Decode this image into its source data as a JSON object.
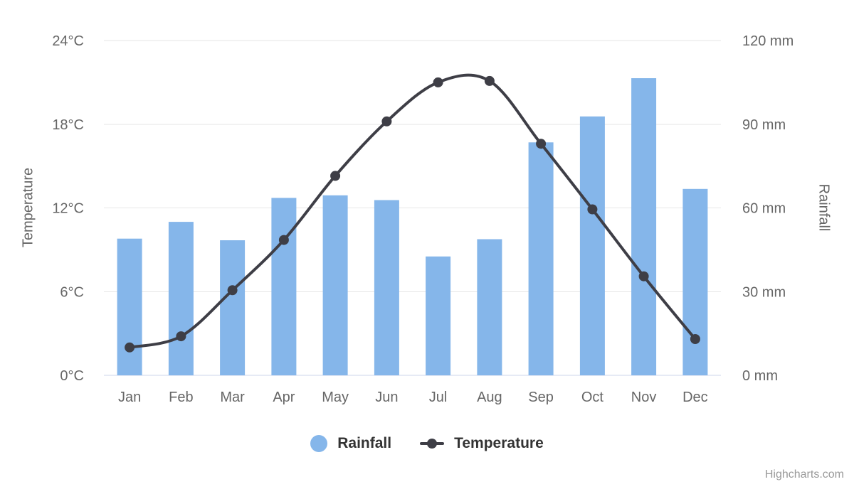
{
  "chart_data": {
    "type": "combo",
    "title": "",
    "categories": [
      "Jan",
      "Feb",
      "Mar",
      "Apr",
      "May",
      "Jun",
      "Jul",
      "Aug",
      "Sep",
      "Oct",
      "Nov",
      "Dec"
    ],
    "series": [
      {
        "name": "Rainfall",
        "type": "bar",
        "axis": "right",
        "unit": "mm",
        "color": "#85b6ea",
        "values": [
          49.0,
          55.0,
          48.4,
          63.6,
          64.5,
          62.8,
          42.6,
          48.8,
          83.5,
          92.8,
          106.5,
          66.8
        ]
      },
      {
        "name": "Temperature",
        "type": "spline",
        "axis": "left",
        "unit": "°C",
        "color": "#3e3e46",
        "values": [
          2.0,
          2.8,
          6.1,
          9.7,
          14.3,
          18.2,
          21.0,
          21.1,
          16.6,
          11.9,
          7.1,
          2.6
        ]
      }
    ],
    "axes": {
      "left": {
        "title": "Temperature",
        "ticks": [
          0,
          6,
          12,
          18,
          24
        ],
        "tick_suffix": "°C",
        "range": [
          0,
          24
        ]
      },
      "right": {
        "title": "Rainfall",
        "ticks": [
          0,
          30,
          60,
          90,
          120
        ],
        "tick_suffix": " mm",
        "range": [
          0,
          120
        ]
      }
    },
    "legend": [
      {
        "label": "Rainfall",
        "marker": "circle"
      },
      {
        "label": "Temperature",
        "marker": "line-dot"
      }
    ],
    "legend_position": "bottom-center",
    "grid": "horizontal",
    "credits": "Highcharts.com",
    "colors": {
      "grid_line": "#e6e6e6",
      "axis_line": "#ccd6eb",
      "tick_label": "#666666",
      "axis_title": "#666666",
      "legend_text": "#333333",
      "credits_text": "#999999"
    }
  }
}
